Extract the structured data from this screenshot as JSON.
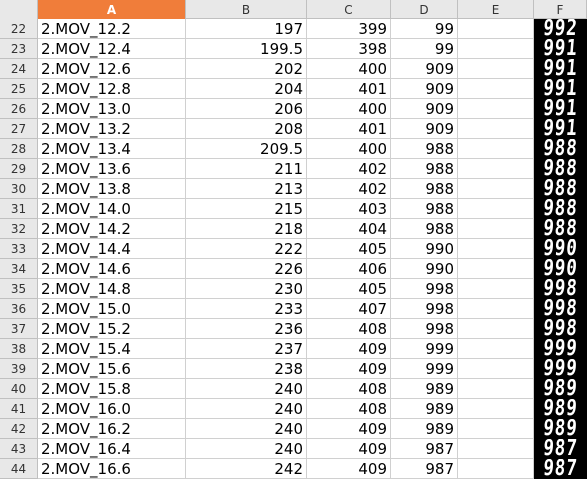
{
  "columns": [
    "A",
    "B",
    "C",
    "D",
    "E",
    "F"
  ],
  "selected_column": "A",
  "rows": [
    {
      "num": "22",
      "a": "2.MOV_12.2",
      "b": "197",
      "c": "399",
      "d": "99",
      "e": "",
      "lcd": "992"
    },
    {
      "num": "23",
      "a": "2.MOV_12.4",
      "b": "199.5",
      "c": "398",
      "d": "99",
      "e": "",
      "lcd": "991"
    },
    {
      "num": "24",
      "a": "2.MOV_12.6",
      "b": "202",
      "c": "400",
      "d": "909",
      "e": "",
      "lcd": "991"
    },
    {
      "num": "25",
      "a": "2.MOV_12.8",
      "b": "204",
      "c": "401",
      "d": "909",
      "e": "",
      "lcd": "991"
    },
    {
      "num": "26",
      "a": "2.MOV_13.0",
      "b": "206",
      "c": "400",
      "d": "909",
      "e": "",
      "lcd": "991"
    },
    {
      "num": "27",
      "a": "2.MOV_13.2",
      "b": "208",
      "c": "401",
      "d": "909",
      "e": "",
      "lcd": "991"
    },
    {
      "num": "28",
      "a": "2.MOV_13.4",
      "b": "209.5",
      "c": "400",
      "d": "988",
      "e": "",
      "lcd": "988"
    },
    {
      "num": "29",
      "a": "2.MOV_13.6",
      "b": "211",
      "c": "402",
      "d": "988",
      "e": "",
      "lcd": "988"
    },
    {
      "num": "30",
      "a": "2.MOV_13.8",
      "b": "213",
      "c": "402",
      "d": "988",
      "e": "",
      "lcd": "988"
    },
    {
      "num": "31",
      "a": "2.MOV_14.0",
      "b": "215",
      "c": "403",
      "d": "988",
      "e": "",
      "lcd": "988"
    },
    {
      "num": "32",
      "a": "2.MOV_14.2",
      "b": "218",
      "c": "404",
      "d": "988",
      "e": "",
      "lcd": "988"
    },
    {
      "num": "33",
      "a": "2.MOV_14.4",
      "b": "222",
      "c": "405",
      "d": "990",
      "e": "",
      "lcd": "990"
    },
    {
      "num": "34",
      "a": "2.MOV_14.6",
      "b": "226",
      "c": "406",
      "d": "990",
      "e": "",
      "lcd": "990"
    },
    {
      "num": "35",
      "a": "2.MOV_14.8",
      "b": "230",
      "c": "405",
      "d": "998",
      "e": "",
      "lcd": "998"
    },
    {
      "num": "36",
      "a": "2.MOV_15.0",
      "b": "233",
      "c": "407",
      "d": "998",
      "e": "",
      "lcd": "998"
    },
    {
      "num": "37",
      "a": "2.MOV_15.2",
      "b": "236",
      "c": "408",
      "d": "998",
      "e": "",
      "lcd": "998"
    },
    {
      "num": "38",
      "a": "2.MOV_15.4",
      "b": "237",
      "c": "409",
      "d": "999",
      "e": "",
      "lcd": "999"
    },
    {
      "num": "39",
      "a": "2.MOV_15.6",
      "b": "238",
      "c": "409",
      "d": "999",
      "e": "",
      "lcd": "999"
    },
    {
      "num": "40",
      "a": "2.MOV_15.8",
      "b": "240",
      "c": "408",
      "d": "989",
      "e": "",
      "lcd": "989"
    },
    {
      "num": "41",
      "a": "2.MOV_16.0",
      "b": "240",
      "c": "408",
      "d": "989",
      "e": "",
      "lcd": "989"
    },
    {
      "num": "42",
      "a": "2.MOV_16.2",
      "b": "240",
      "c": "409",
      "d": "989",
      "e": "",
      "lcd": "989"
    },
    {
      "num": "43",
      "a": "2.MOV_16.4",
      "b": "240",
      "c": "409",
      "d": "987",
      "e": "",
      "lcd": "987"
    },
    {
      "num": "44",
      "a": "2.MOV_16.6",
      "b": "242",
      "c": "409",
      "d": "987",
      "e": "",
      "lcd": "987"
    }
  ],
  "colors": {
    "selected_header": "#f07d3a",
    "header_bg": "#e8e8e8",
    "lcd_bg": "#000000",
    "lcd_fg": "#ffffff"
  }
}
